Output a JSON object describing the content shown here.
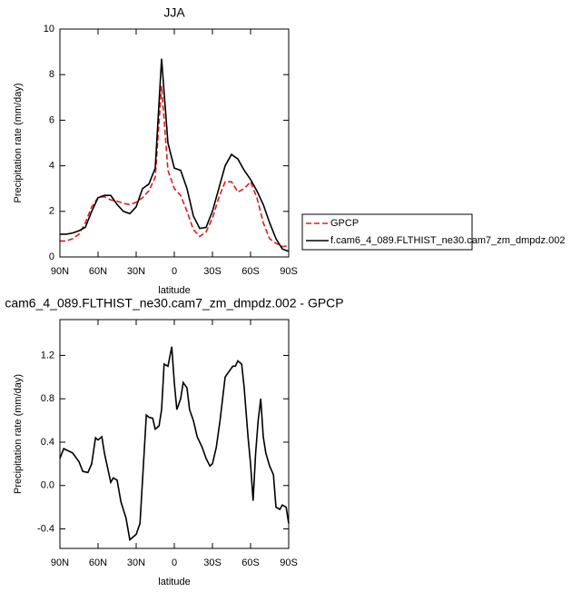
{
  "chart_data": [
    {
      "type": "line",
      "title": "JJA",
      "x_label": "latitude",
      "y_label": "Precipitation rate (mm/day)",
      "x": [
        90,
        85,
        80,
        75,
        70,
        65,
        60,
        55,
        50,
        45,
        40,
        35,
        30,
        25,
        20,
        15,
        10,
        5,
        0,
        -5,
        -10,
        -15,
        -20,
        -25,
        -30,
        -35,
        -40,
        -45,
        -50,
        -55,
        -60,
        -65,
        -70,
        -75,
        -80,
        -85,
        -90
      ],
      "series": [
        {
          "name": "GPCP",
          "color": "#e41a1c",
          "line_style": "dashed",
          "values": [
            0.7,
            0.7,
            0.8,
            1.0,
            1.5,
            2.2,
            2.6,
            2.65,
            2.5,
            2.45,
            2.35,
            2.3,
            2.4,
            2.6,
            2.9,
            3.5,
            7.5,
            3.8,
            3.0,
            2.7,
            2.0,
            1.2,
            0.9,
            1.1,
            1.7,
            2.6,
            3.3,
            3.3,
            2.85,
            3.0,
            3.3,
            2.6,
            1.5,
            0.8,
            0.6,
            0.45,
            0.5
          ]
        },
        {
          "name": "f.cam6_4_089.FLTHIST_ne30.cam7_zm_dmpdz.002",
          "color": "#000000",
          "line_style": "solid",
          "values": [
            1.0,
            1.0,
            1.05,
            1.15,
            1.3,
            2.0,
            2.6,
            2.7,
            2.7,
            2.3,
            2.0,
            1.9,
            2.2,
            3.0,
            3.2,
            3.9,
            8.7,
            5.0,
            3.9,
            3.8,
            3.0,
            1.8,
            1.25,
            1.3,
            2.0,
            3.0,
            4.0,
            4.5,
            4.3,
            3.8,
            3.4,
            2.9,
            2.3,
            1.5,
            0.8,
            0.35,
            0.25
          ]
        }
      ],
      "xlim": [
        90,
        -90
      ],
      "xticks": [
        {
          "value": 90,
          "label": "90N"
        },
        {
          "value": 60,
          "label": "60N"
        },
        {
          "value": 30,
          "label": "30N"
        },
        0,
        {
          "value": -30,
          "label": "30S"
        },
        {
          "value": -60,
          "label": "60S"
        },
        {
          "value": -90,
          "label": "90S"
        }
      ],
      "ylim": [
        0,
        10
      ],
      "yticks": [
        0,
        2,
        4,
        6,
        8,
        10
      ],
      "grid": false,
      "legend": "outside-right"
    },
    {
      "type": "line",
      "title": "cam6_4_089.FLTHIST_ne30.cam7_zm_dmpdz.002 - GPCP",
      "x_label": "latitude",
      "y_label": "Precipitation rate (mm/day)",
      "x": [
        90,
        87,
        80,
        75,
        72,
        68,
        65,
        62,
        60,
        57,
        55,
        50,
        48,
        45,
        42,
        38,
        35,
        30,
        27,
        22,
        20,
        17,
        15,
        12,
        10,
        8,
        5,
        2,
        0,
        -2,
        -5,
        -7,
        -10,
        -12,
        -15,
        -18,
        -22,
        -25,
        -28,
        -30,
        -33,
        -36,
        -40,
        -43,
        -46,
        -48,
        -50,
        -53,
        -55,
        -58,
        -60,
        -62,
        -64,
        -66,
        -68,
        -70,
        -72,
        -75,
        -78,
        -80,
        -83,
        -85,
        -88,
        -90
      ],
      "values": [
        0.25,
        0.34,
        0.3,
        0.22,
        0.13,
        0.12,
        0.2,
        0.44,
        0.42,
        0.45,
        0.3,
        0.03,
        0.07,
        0.05,
        -0.15,
        -0.3,
        -0.5,
        -0.45,
        -0.35,
        0.65,
        0.63,
        0.62,
        0.52,
        0.55,
        0.7,
        1.12,
        1.1,
        1.28,
        0.95,
        0.7,
        0.8,
        0.95,
        0.9,
        0.7,
        0.6,
        0.45,
        0.35,
        0.25,
        0.18,
        0.2,
        0.35,
        0.6,
        1.0,
        1.05,
        1.1,
        1.1,
        1.15,
        1.12,
        0.9,
        0.45,
        0.2,
        -0.14,
        0.3,
        0.6,
        0.8,
        0.45,
        0.3,
        0.18,
        0.1,
        -0.2,
        -0.22,
        -0.18,
        -0.2,
        -0.35
      ],
      "color": "#000000",
      "xlim": [
        90,
        -90
      ],
      "xticks": [
        {
          "value": 90,
          "label": "90N"
        },
        {
          "value": 60,
          "label": "60N"
        },
        {
          "value": 30,
          "label": "30N"
        },
        0,
        {
          "value": -30,
          "label": "30S"
        },
        {
          "value": -60,
          "label": "60S"
        },
        {
          "value": -90,
          "label": "90S"
        }
      ],
      "ylim": [
        -0.58,
        1.53
      ],
      "yticks": [
        -0.4,
        {
          "value": 0,
          "label": "0.0"
        },
        0.4,
        0.8,
        1.2
      ],
      "grid": false
    }
  ]
}
